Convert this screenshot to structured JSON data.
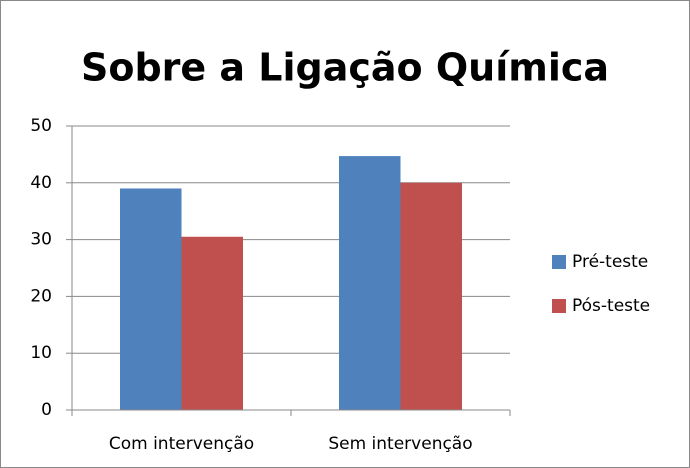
{
  "chart_data": {
    "type": "bar",
    "title": "Sobre a Ligação Química",
    "categories": [
      "Com intervenção",
      "Sem intervenção"
    ],
    "series": [
      {
        "name": "Pré-teste",
        "color": "#4f81bd",
        "values": [
          39,
          44.7
        ]
      },
      {
        "name": "Pós-teste",
        "color": "#c0504d",
        "values": [
          30.5,
          40
        ]
      }
    ],
    "ylim": [
      0,
      50
    ],
    "yticks": [
      0,
      10,
      20,
      30,
      40,
      50
    ],
    "grid": true,
    "legend": "right"
  }
}
